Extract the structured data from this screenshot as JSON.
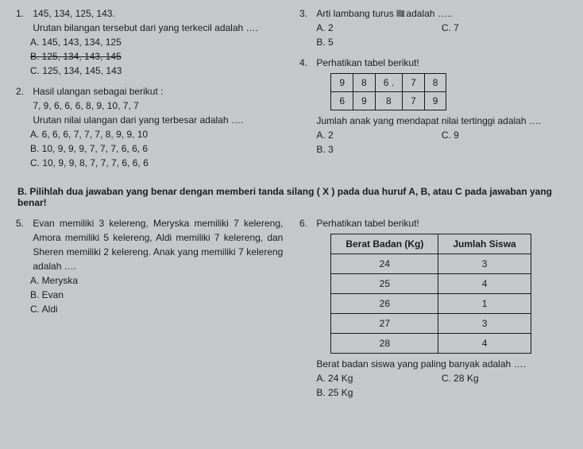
{
  "q1": {
    "num": "1.",
    "stem1": "145, 134, 125, 143.",
    "stem2": "Urutan bilangan tersebut dari yang terkecil adalah ….",
    "optA": "A.  145, 143, 134, 125",
    "optB": "B.  125, 134, 143, 145",
    "optC": "C.  125, 134, 145, 143"
  },
  "q2": {
    "num": "2.",
    "stem1": "Hasil ulangan sebagai berikut :",
    "stem2": "7, 9, 6, 6, 6, 8, 9, 10, 7, 7",
    "stem3": "Urutan nilai ulangan dari yang terbesar adalah ….",
    "optA": "A.  6, 6, 6, 7, 7, 7, 8, 9, 9, 10",
    "optB": "B.  10, 9, 9, 9, 7, 7, 7, 6, 6, 6",
    "optC": "C.  10, 9, 9, 8, 7, 7, 7, 6, 6, 6"
  },
  "q3": {
    "num": "3.",
    "stem": "Arti lambang turus",
    "tally": "𝍫 II",
    "stem_after": "adalah …..",
    "optA": "A.  2",
    "optB": "B.  5",
    "optC": "C.  7"
  },
  "q4": {
    "num": "4.",
    "stem": "Perhatikan tabel berikut!",
    "row1": [
      "9",
      "8",
      "6 .",
      "7",
      "8"
    ],
    "row2": [
      "6",
      "9",
      "8",
      "7",
      "9"
    ],
    "after": "Jumlah anak yang mendapat nilai tertinggi adalah ….",
    "optA": "A.  2",
    "optB": "B.  3",
    "optC": "C.  9"
  },
  "sectionB": "B.   Pilihlah dua jawaban yang benar dengan memberi tanda silang ( X ) pada dua huruf A, B, atau C pada jawaban yang benar!",
  "q5": {
    "num": "5.",
    "stem": "Evan memiliki 3 kelereng, Meryska memiliki 7 kelereng, Amora memiliki 5 kelereng, Aldi memiliki 7 kelereng, dan Sheren memiliki 2 kelereng. Anak yang memiliki 7 kelereng adalah ….",
    "optA": "A.  Meryska",
    "optB": "B.  Evan",
    "optC": "C.  Aldi"
  },
  "q6": {
    "num": "6.",
    "stem": "Perhatikan tabel berikut!",
    "h1": "Berat Badan (Kg)",
    "h2": "Jumlah Siswa",
    "rows": [
      [
        "24",
        "3"
      ],
      [
        "25",
        "4"
      ],
      [
        "26",
        "1"
      ],
      [
        "27",
        "3"
      ],
      [
        "28",
        "4"
      ]
    ],
    "after": "Berat badan siswa yang paling banyak adalah ….",
    "optA": "A.  24 Kg",
    "optB": "B.  25 Kg",
    "optC": "C.  28 Kg"
  }
}
